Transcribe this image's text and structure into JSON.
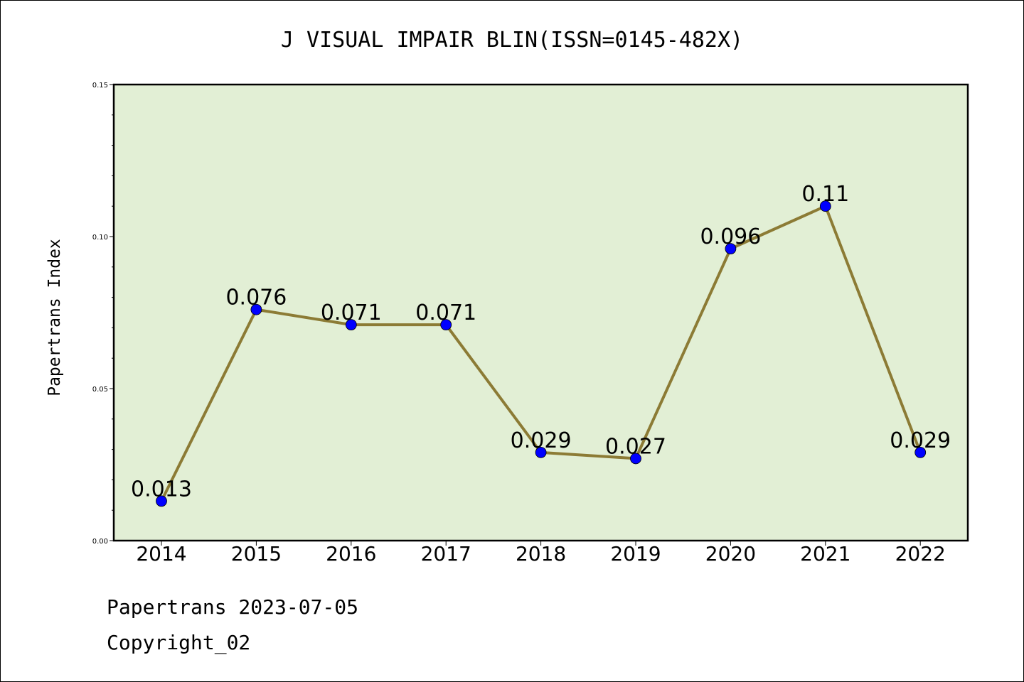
{
  "chart_data": {
    "type": "line",
    "title": "J VISUAL IMPAIR BLIN(ISSN=0145-482X)",
    "xlabel": "",
    "ylabel": "Papertrans Index",
    "categories": [
      "2014",
      "2015",
      "2016",
      "2017",
      "2018",
      "2019",
      "2020",
      "2021",
      "2022"
    ],
    "values": [
      0.013,
      0.076,
      0.071,
      0.071,
      0.029,
      0.027,
      0.096,
      0.11,
      0.029
    ],
    "data_labels": [
      "0.013",
      "0.076",
      "0.071",
      "0.071",
      "0.029",
      "0.027",
      "0.096",
      "0.11",
      "0.029"
    ],
    "ylim": [
      0,
      0.15
    ],
    "yticks": [
      0.0,
      0.05,
      0.1,
      0.15
    ],
    "ytick_labels": [
      "0.00",
      "0.05",
      "0.10",
      "0.15"
    ],
    "grid": false,
    "colors": {
      "plot_background": "#e2efd5",
      "line": "#8c7b35",
      "marker": "#0000ff"
    }
  },
  "footer": {
    "line1": "Papertrans 2023-07-05",
    "line2": "Copyright_02"
  }
}
